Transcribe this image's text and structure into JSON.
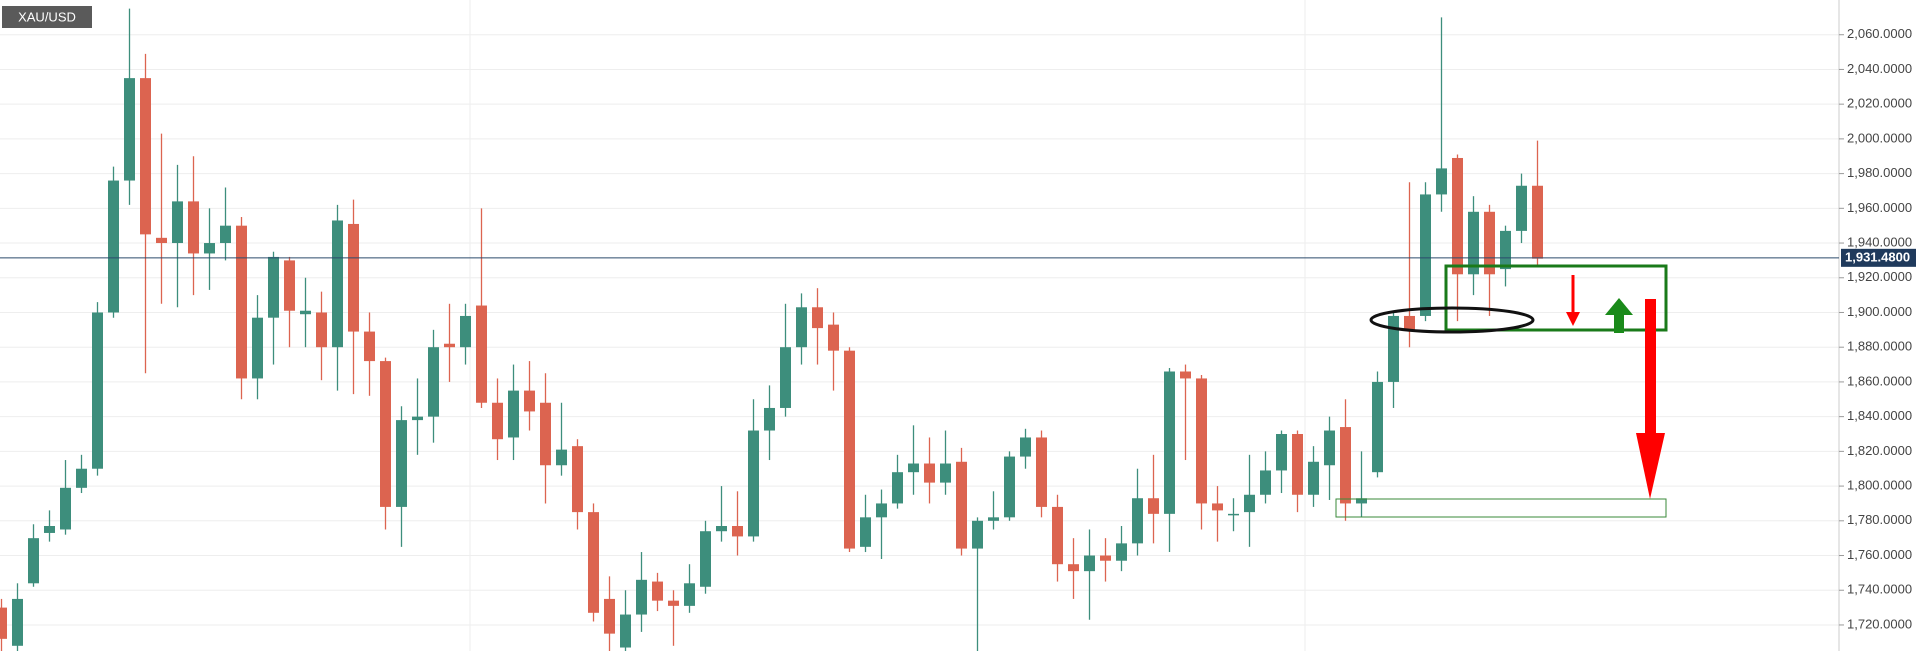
{
  "chart_data": {
    "type": "candlestick",
    "symbol": "XAU/USD",
    "open": [
      1730,
      1708,
      1744,
      1773,
      1775,
      1799,
      1810,
      1900,
      1976,
      2035,
      1943,
      1940,
      1964,
      1934,
      1940,
      1950,
      1862,
      1897,
      1930,
      1899,
      1900,
      1880,
      1951,
      1889,
      1872,
      1788,
      1838,
      1840,
      1882,
      1880,
      1904,
      1848,
      1828,
      1855,
      1848,
      1812,
      1823,
      1785,
      1735,
      1707,
      1726,
      1745,
      1734,
      1731,
      1742,
      1774,
      1777,
      1771,
      1832,
      1845,
      1880,
      1903,
      1893,
      1878,
      1765,
      1782,
      1790,
      1808,
      1813,
      1802,
      1814,
      1764,
      1780,
      1782,
      1817,
      1828,
      1788,
      1755,
      1751,
      1760,
      1757,
      1767,
      1793,
      1784,
      1866,
      1862,
      1790,
      1784,
      1785,
      1795,
      1809,
      1830,
      1795,
      1812,
      1834,
      1790,
      1808,
      1860,
      1898,
      1898,
      1968,
      1989,
      1922,
      1958,
      1925,
      1947,
      1973
    ],
    "high": [
      1735,
      1744,
      1778,
      1786,
      1815,
      1818,
      1906,
      1984,
      2075,
      2049,
      2003,
      1985,
      1990,
      1960,
      1972,
      1955,
      1910,
      1935,
      1932,
      1920,
      1912,
      1962,
      1965,
      1900,
      1874,
      1846,
      1862,
      1890,
      1905,
      1905,
      1960,
      1862,
      1870,
      1872,
      1865,
      1848,
      1827,
      1790,
      1748,
      1740,
      1762,
      1750,
      1740,
      1755,
      1780,
      1800,
      1797,
      1850,
      1858,
      1905,
      1911,
      1914,
      1900,
      1880,
      1795,
      1798,
      1818,
      1835,
      1828,
      1832,
      1822,
      1782,
      1797,
      1820,
      1833,
      1832,
      1795,
      1770,
      1775,
      1770,
      1777,
      1810,
      1818,
      1868,
      1870,
      1864,
      1800,
      1793,
      1818,
      1820,
      1832,
      1832,
      1823,
      1840,
      1850,
      1820,
      1866,
      1900,
      1975,
      1975,
      2070,
      1991,
      1967,
      1962,
      1950,
      1980,
      1999
    ],
    "low": [
      1705,
      1705,
      1742,
      1768,
      1772,
      1796,
      1806,
      1897,
      1962,
      1865,
      1905,
      1903,
      1910,
      1913,
      1930,
      1850,
      1850,
      1870,
      1880,
      1880,
      1861,
      1855,
      1853,
      1852,
      1775,
      1765,
      1818,
      1825,
      1860,
      1870,
      1845,
      1815,
      1815,
      1832,
      1790,
      1806,
      1775,
      1722,
      1705,
      1705,
      1716,
      1728,
      1708,
      1727,
      1738,
      1768,
      1760,
      1768,
      1815,
      1840,
      1870,
      1870,
      1855,
      1762,
      1762,
      1758,
      1787,
      1795,
      1790,
      1795,
      1760,
      1705,
      1775,
      1780,
      1810,
      1782,
      1745,
      1735,
      1723,
      1745,
      1751,
      1760,
      1767,
      1762,
      1815,
      1775,
      1768,
      1774,
      1765,
      1790,
      1796,
      1785,
      1788,
      1792,
      1780,
      1782,
      1805,
      1845,
      1880,
      1895,
      1958,
      1895,
      1910,
      1898,
      1915,
      1940,
      1927
    ],
    "close": [
      1712,
      1735,
      1770,
      1777,
      1799,
      1810,
      1900,
      1976,
      2035,
      1945,
      1940,
      1964,
      1934,
      1940,
      1950,
      1862,
      1897,
      1932,
      1901,
      1901,
      1880,
      1953,
      1889,
      1872,
      1788,
      1838,
      1840,
      1880,
      1880,
      1898,
      1848,
      1827,
      1855,
      1843,
      1812,
      1821,
      1785,
      1727,
      1715,
      1726,
      1746,
      1734,
      1731,
      1744,
      1774,
      1777,
      1771,
      1832,
      1845,
      1880,
      1903,
      1891,
      1878,
      1764,
      1782,
      1790,
      1808,
      1813,
      1802,
      1813,
      1764,
      1780,
      1782,
      1817,
      1828,
      1788,
      1755,
      1751,
      1760,
      1757,
      1767,
      1793,
      1784,
      1866,
      1862,
      1790,
      1786,
      1784,
      1795,
      1809,
      1830,
      1795,
      1814,
      1832,
      1790,
      1793,
      1860,
      1898,
      1890,
      1968,
      1983,
      1922,
      1958,
      1922,
      1947,
      1973,
      1931
    ],
    "up_color": "#3d8e7c",
    "down_color": "#dc6450",
    "ylim": [
      1705,
      2080
    ],
    "yticks": [
      {
        "value": 1720,
        "label": "1,720.0000"
      },
      {
        "value": 1740,
        "label": "1,740.0000"
      },
      {
        "value": 1760,
        "label": "1,760.0000"
      },
      {
        "value": 1780,
        "label": "1,780.0000"
      },
      {
        "value": 1800,
        "label": "1,800.0000"
      },
      {
        "value": 1820,
        "label": "1,820.0000"
      },
      {
        "value": 1840,
        "label": "1,840.0000"
      },
      {
        "value": 1860,
        "label": "1,860.0000"
      },
      {
        "value": 1880,
        "label": "1,880.0000"
      },
      {
        "value": 1900,
        "label": "1,900.0000"
      },
      {
        "value": 1920,
        "label": "1,920.0000"
      },
      {
        "value": 1940,
        "label": "1,940.0000"
      },
      {
        "value": 1960,
        "label": "1,960.0000"
      },
      {
        "value": 1980,
        "label": "1,980.0000"
      },
      {
        "value": 2000,
        "label": "2,000.0000"
      },
      {
        "value": 2020,
        "label": "2,020.0000"
      },
      {
        "value": 2040,
        "label": "2,040.0000"
      },
      {
        "value": 2060,
        "label": "2,060.0000"
      }
    ],
    "last_price": {
      "value": 1931.48,
      "label": "1,931.4800"
    },
    "grid": true
  }
}
